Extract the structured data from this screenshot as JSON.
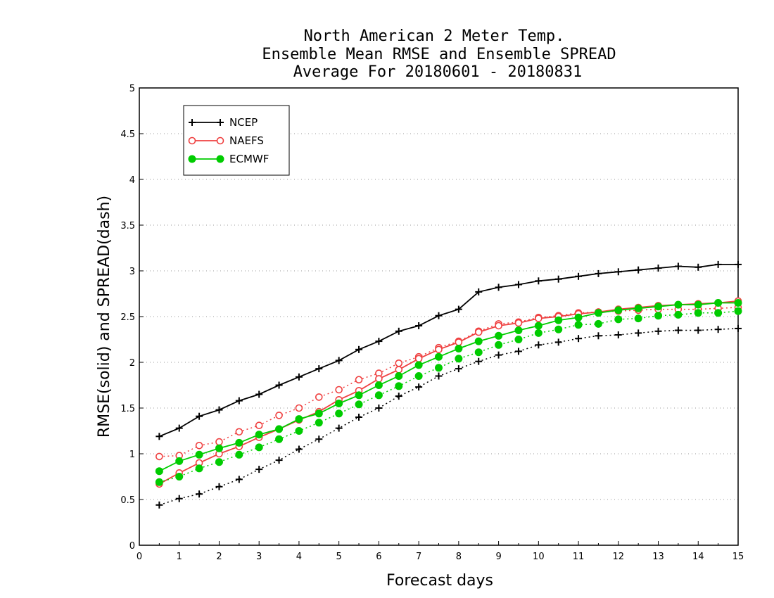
{
  "chart_data": {
    "type": "line",
    "title_lines": [
      "North American 2 Meter Temp.",
      "Ensemble Mean RMSE and Ensemble SPREAD",
      "Average For 20180601 - 20180831"
    ],
    "xlabel": "Forecast days",
    "ylabel": "RMSE(solid) and SPREAD(dash)",
    "xlim": [
      0,
      15
    ],
    "ylim": [
      0,
      5
    ],
    "xticks": [
      "0",
      "1",
      "2",
      "3",
      "4",
      "5",
      "6",
      "7",
      "8",
      "9",
      "10",
      "11",
      "12",
      "13",
      "14",
      "15"
    ],
    "yticks": [
      "0",
      "0.5",
      "1",
      "1.5",
      "2",
      "2.5",
      "3",
      "3.5",
      "4",
      "4.5",
      "5"
    ],
    "grid": "horizontal dotted",
    "legend_position": "top-left",
    "x": [
      0.5,
      1,
      1.5,
      2,
      2.5,
      3,
      3.5,
      4,
      4.5,
      5,
      5.5,
      6,
      6.5,
      7,
      7.5,
      8,
      8.5,
      9,
      9.5,
      10,
      10.5,
      11,
      11.5,
      12,
      12.5,
      13,
      13.5,
      14,
      14.5,
      15
    ],
    "series": [
      {
        "name": "NCEP",
        "color": "#000000",
        "marker": "plus",
        "rmse": [
          1.19,
          1.28,
          1.41,
          1.48,
          1.58,
          1.65,
          1.75,
          1.84,
          1.93,
          2.02,
          2.14,
          2.23,
          2.34,
          2.4,
          2.51,
          2.58,
          2.77,
          2.82,
          2.85,
          2.89,
          2.91,
          2.94,
          2.97,
          2.99,
          3.01,
          3.03,
          3.05,
          3.04,
          3.07,
          3.07
        ],
        "spread": [
          0.44,
          0.51,
          0.56,
          0.64,
          0.72,
          0.83,
          0.93,
          1.05,
          1.16,
          1.28,
          1.4,
          1.5,
          1.63,
          1.73,
          1.85,
          1.93,
          2.01,
          2.08,
          2.12,
          2.19,
          2.22,
          2.26,
          2.29,
          2.3,
          2.32,
          2.34,
          2.35,
          2.35,
          2.36,
          2.37
        ]
      },
      {
        "name": "NAEFS",
        "color": "#ef4040",
        "marker": "open-circle",
        "rmse": [
          0.67,
          0.79,
          0.9,
          1.0,
          1.08,
          1.18,
          1.27,
          1.37,
          1.46,
          1.59,
          1.69,
          1.82,
          1.92,
          2.04,
          2.14,
          2.22,
          2.33,
          2.4,
          2.43,
          2.48,
          2.5,
          2.53,
          2.55,
          2.58,
          2.6,
          2.62,
          2.63,
          2.64,
          2.65,
          2.67
        ],
        "spread": [
          0.97,
          0.98,
          1.09,
          1.13,
          1.24,
          1.31,
          1.42,
          1.5,
          1.62,
          1.7,
          1.81,
          1.88,
          1.99,
          2.06,
          2.16,
          2.23,
          2.34,
          2.42,
          2.44,
          2.49,
          2.51,
          2.54,
          2.55,
          2.56,
          2.57,
          2.58,
          2.58,
          2.58,
          2.59,
          2.6
        ]
      },
      {
        "name": "ECMWF",
        "color": "#00cc00",
        "marker": "filled-circle",
        "rmse": [
          0.81,
          0.92,
          0.99,
          1.06,
          1.12,
          1.21,
          1.27,
          1.38,
          1.44,
          1.55,
          1.64,
          1.75,
          1.85,
          1.97,
          2.06,
          2.15,
          2.23,
          2.29,
          2.35,
          2.4,
          2.46,
          2.49,
          2.54,
          2.57,
          2.59,
          2.61,
          2.63,
          2.63,
          2.65,
          2.65
        ],
        "spread": [
          0.69,
          0.75,
          0.84,
          0.91,
          0.99,
          1.07,
          1.16,
          1.25,
          1.34,
          1.44,
          1.54,
          1.64,
          1.74,
          1.85,
          1.94,
          2.04,
          2.11,
          2.19,
          2.25,
          2.32,
          2.36,
          2.41,
          2.42,
          2.47,
          2.48,
          2.51,
          2.52,
          2.54,
          2.54,
          2.56
        ]
      }
    ]
  }
}
